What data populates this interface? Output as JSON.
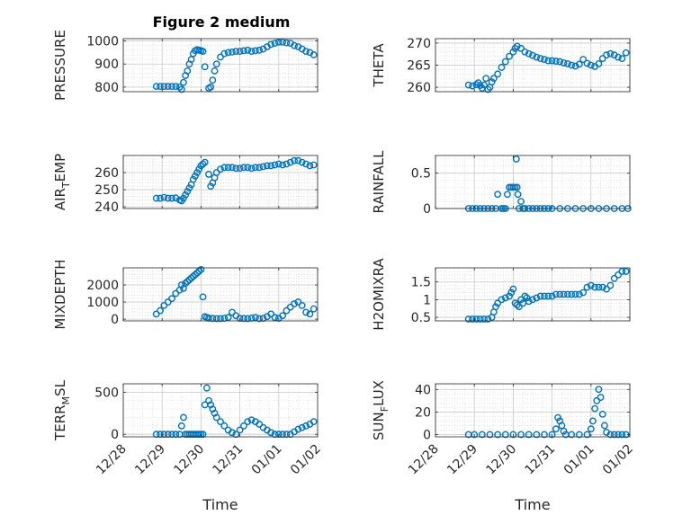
{
  "figure_title": "Figure 2 medium",
  "colors": {
    "marker": "#0072BD",
    "axis": "#262626",
    "grid": "#c8c8c8",
    "minor_grid": "#e0e0e0"
  },
  "chart_data": [
    {
      "type": "scatter",
      "ylabel": "PRESSURE",
      "xlabel": "",
      "title": "Figure 2 medium",
      "xlim": [
        0,
        5
      ],
      "ylim": [
        780,
        1010
      ],
      "yticks": [
        800,
        900,
        1000
      ],
      "ytick_labels": [
        "800",
        "900",
        "1000"
      ],
      "xtick_labels": [
        "12/28",
        "12/29",
        "12/30",
        "12/31",
        "01/01",
        "01/02"
      ],
      "show_xtick_labels": false,
      "grid": true,
      "x": [
        0.85,
        0.95,
        1.05,
        1.15,
        1.25,
        1.35,
        1.45,
        1.5,
        1.55,
        1.6,
        1.65,
        1.7,
        1.75,
        1.8,
        1.85,
        1.9,
        1.95,
        2.0,
        2.05,
        2.1,
        2.2,
        2.25,
        2.3,
        2.35,
        2.4,
        2.5,
        2.6,
        2.7,
        2.8,
        2.9,
        3.0,
        3.1,
        3.2,
        3.3,
        3.4,
        3.5,
        3.6,
        3.7,
        3.8,
        3.9,
        4.0,
        4.1,
        4.2,
        4.3,
        4.4,
        4.5,
        4.6,
        4.7,
        4.8,
        4.9
      ],
      "y": [
        803,
        803,
        803,
        803,
        803,
        803,
        800,
        790,
        820,
        850,
        870,
        900,
        920,
        945,
        958,
        962,
        960,
        958,
        955,
        888,
        795,
        800,
        830,
        870,
        900,
        930,
        945,
        950,
        952,
        955,
        955,
        958,
        960,
        955,
        958,
        960,
        965,
        975,
        985,
        990,
        995,
        995,
        992,
        990,
        980,
        975,
        965,
        955,
        950,
        940
      ]
    },
    {
      "type": "scatter",
      "ylabel": "THETA",
      "xlabel": "",
      "title": "",
      "xlim": [
        0,
        5
      ],
      "ylim": [
        259,
        271
      ],
      "yticks": [
        260,
        265,
        270
      ],
      "ytick_labels": [
        "260",
        "265",
        "270"
      ],
      "xtick_labels": [
        "12/28",
        "12/29",
        "12/30",
        "12/31",
        "01/01",
        "01/02"
      ],
      "show_xtick_labels": false,
      "grid": true,
      "x": [
        0.85,
        0.95,
        1.05,
        1.1,
        1.15,
        1.2,
        1.25,
        1.3,
        1.35,
        1.4,
        1.45,
        1.5,
        1.6,
        1.7,
        1.8,
        1.9,
        2.0,
        2.05,
        2.1,
        2.2,
        2.3,
        2.4,
        2.5,
        2.6,
        2.7,
        2.8,
        2.9,
        3.0,
        3.1,
        3.2,
        3.3,
        3.4,
        3.5,
        3.6,
        3.7,
        3.8,
        3.9,
        4.0,
        4.1,
        4.2,
        4.3,
        4.4,
        4.5,
        4.6,
        4.7,
        4.8,
        4.9
      ],
      "y": [
        260.5,
        260.3,
        260.6,
        261,
        260.4,
        259.8,
        260.5,
        262,
        259.5,
        260,
        261.2,
        262,
        263,
        264.5,
        265.8,
        267,
        268,
        268.8,
        269.3,
        268.8,
        268,
        267.6,
        267.2,
        266.8,
        266.5,
        266.3,
        266,
        266,
        265.9,
        265.8,
        265.5,
        265.3,
        265,
        264.8,
        265.2,
        266.3,
        265.4,
        265,
        264.7,
        265.3,
        266.5,
        267.3,
        267.6,
        267.3,
        266.8,
        266.5,
        267.8
      ]
    },
    {
      "type": "scatter",
      "ylabel": "AIR_TEMP",
      "xlabel": "",
      "title": "",
      "xlim": [
        0,
        5
      ],
      "ylim": [
        239,
        270
      ],
      "yticks": [
        240,
        250,
        260
      ],
      "ytick_labels": [
        "240",
        "250",
        "260"
      ],
      "xtick_labels": [
        "12/28",
        "12/29",
        "12/30",
        "12/31",
        "01/01",
        "01/02"
      ],
      "show_xtick_labels": false,
      "grid": true,
      "x": [
        0.85,
        0.95,
        1.05,
        1.15,
        1.25,
        1.35,
        1.45,
        1.5,
        1.55,
        1.6,
        1.65,
        1.7,
        1.75,
        1.8,
        1.85,
        1.9,
        1.95,
        2.0,
        2.05,
        2.1,
        2.2,
        2.25,
        2.3,
        2.35,
        2.4,
        2.5,
        2.6,
        2.7,
        2.8,
        2.9,
        3.0,
        3.1,
        3.2,
        3.3,
        3.4,
        3.5,
        3.6,
        3.7,
        3.8,
        3.9,
        4.0,
        4.1,
        4.2,
        4.3,
        4.4,
        4.5,
        4.6,
        4.7,
        4.8,
        4.9
      ],
      "y": [
        245,
        245,
        245.5,
        245,
        245,
        245.2,
        244,
        243.5,
        245,
        247,
        249,
        251,
        253,
        256,
        258,
        260,
        262,
        264,
        265,
        266,
        259,
        252,
        254,
        257,
        260,
        262,
        263,
        263,
        263,
        262.5,
        262.5,
        263,
        263,
        262.5,
        263,
        263,
        263.5,
        264,
        264,
        264.5,
        265,
        264.5,
        265,
        266,
        267,
        267,
        266,
        265,
        264,
        264.5
      ]
    },
    {
      "type": "scatter",
      "ylabel": "RAINFALL",
      "xlabel": "",
      "title": "",
      "xlim": [
        0,
        5
      ],
      "ylim": [
        0,
        0.75
      ],
      "yticks": [
        0,
        0.5
      ],
      "ytick_labels": [
        "0",
        "0.5"
      ],
      "xtick_labels": [
        "12/28",
        "12/29",
        "12/30",
        "12/31",
        "01/01",
        "01/02"
      ],
      "show_xtick_labels": false,
      "grid": true,
      "x": [
        0.85,
        0.95,
        1.05,
        1.15,
        1.25,
        1.35,
        1.45,
        1.55,
        1.6,
        1.7,
        1.75,
        1.8,
        1.85,
        1.9,
        1.95,
        2.0,
        2.05,
        2.08,
        2.1,
        2.12,
        2.15,
        2.2,
        2.25,
        2.3,
        2.4,
        2.5,
        2.6,
        2.7,
        2.8,
        2.9,
        3.0,
        3.2,
        3.4,
        3.6,
        3.8,
        4.0,
        4.2,
        4.4,
        4.6,
        4.8,
        4.95
      ],
      "y": [
        0,
        0,
        0,
        0,
        0,
        0,
        0,
        0,
        0.2,
        0,
        0,
        0,
        0.2,
        0.3,
        0.3,
        0.3,
        0.3,
        0.7,
        0.3,
        0.2,
        0,
        0.1,
        0,
        0,
        0,
        0,
        0,
        0,
        0,
        0,
        0,
        0,
        0,
        0,
        0,
        0,
        0,
        0,
        0,
        0,
        0
      ]
    },
    {
      "type": "scatter",
      "ylabel": "MIXDEPTH",
      "xlabel": "",
      "title": "",
      "xlim": [
        0,
        5
      ],
      "ylim": [
        -100,
        3000
      ],
      "yticks": [
        0,
        1000,
        2000
      ],
      "ytick_labels": [
        "0",
        "1000",
        "2000"
      ],
      "xtick_labels": [
        "12/28",
        "12/29",
        "12/30",
        "12/31",
        "01/01",
        "01/02"
      ],
      "show_xtick_labels": false,
      "grid": true,
      "x": [
        0.85,
        0.95,
        1.05,
        1.15,
        1.25,
        1.35,
        1.45,
        1.5,
        1.55,
        1.6,
        1.65,
        1.7,
        1.75,
        1.8,
        1.85,
        1.9,
        1.95,
        2.0,
        2.05,
        2.1,
        2.15,
        2.2,
        2.3,
        2.4,
        2.5,
        2.6,
        2.7,
        2.8,
        2.9,
        3.0,
        3.1,
        3.2,
        3.3,
        3.4,
        3.5,
        3.6,
        3.7,
        3.8,
        3.9,
        4.0,
        4.1,
        4.2,
        4.3,
        4.4,
        4.5,
        4.6,
        4.7,
        4.8,
        4.9
      ],
      "y": [
        300,
        500,
        800,
        1000,
        1200,
        1500,
        1700,
        2000,
        1800,
        2100,
        2200,
        2300,
        2400,
        2500,
        2600,
        2700,
        2800,
        2900,
        1300,
        150,
        100,
        60,
        40,
        30,
        30,
        50,
        100,
        400,
        200,
        50,
        40,
        30,
        60,
        100,
        30,
        50,
        150,
        300,
        100,
        50,
        200,
        500,
        700,
        900,
        1000,
        800,
        400,
        300,
        600
      ]
    },
    {
      "type": "scatter",
      "ylabel": "H2OMIXRA",
      "xlabel": "",
      "title": "",
      "xlim": [
        0,
        5
      ],
      "ylim": [
        0.4,
        1.9
      ],
      "yticks": [
        0.5,
        1,
        1.5
      ],
      "ytick_labels": [
        "0.5",
        "1",
        "1.5"
      ],
      "xtick_labels": [
        "12/28",
        "12/29",
        "12/30",
        "12/31",
        "01/01",
        "01/02"
      ],
      "show_xtick_labels": false,
      "grid": true,
      "x": [
        0.85,
        0.95,
        1.05,
        1.15,
        1.25,
        1.35,
        1.45,
        1.5,
        1.55,
        1.6,
        1.7,
        1.8,
        1.9,
        1.95,
        2.0,
        2.05,
        2.1,
        2.15,
        2.2,
        2.25,
        2.3,
        2.35,
        2.4,
        2.5,
        2.6,
        2.7,
        2.8,
        2.9,
        3.0,
        3.1,
        3.2,
        3.3,
        3.4,
        3.5,
        3.6,
        3.7,
        3.8,
        3.9,
        4.0,
        4.1,
        4.2,
        4.3,
        4.4,
        4.5,
        4.6,
        4.7,
        4.8,
        4.9
      ],
      "y": [
        0.45,
        0.45,
        0.45,
        0.45,
        0.45,
        0.45,
        0.5,
        0.65,
        0.8,
        0.9,
        1.0,
        1.05,
        1.1,
        1.2,
        1.3,
        0.9,
        0.85,
        0.8,
        1.0,
        0.9,
        1.1,
        1.05,
        0.95,
        1.0,
        1.05,
        1.1,
        1.1,
        1.1,
        1.1,
        1.15,
        1.15,
        1.15,
        1.15,
        1.15,
        1.15,
        1.15,
        1.2,
        1.35,
        1.4,
        1.35,
        1.35,
        1.35,
        1.3,
        1.4,
        1.6,
        1.7,
        1.8,
        1.8
      ]
    },
    {
      "type": "scatter",
      "ylabel": "TERR_MSL",
      "xlabel": "Time",
      "title": "",
      "xlim": [
        0,
        5
      ],
      "ylim": [
        -30,
        600
      ],
      "yticks": [
        0,
        500
      ],
      "ytick_labels": [
        "0",
        "500"
      ],
      "xtick_labels": [
        "12/28",
        "12/29",
        "12/30",
        "12/31",
        "01/01",
        "01/02"
      ],
      "show_xtick_labels": true,
      "grid": true,
      "x": [
        0.85,
        0.95,
        1.05,
        1.15,
        1.25,
        1.35,
        1.45,
        1.5,
        1.55,
        1.6,
        1.65,
        1.7,
        1.75,
        1.8,
        1.85,
        1.9,
        1.95,
        2.0,
        2.05,
        2.1,
        2.15,
        2.2,
        2.25,
        2.3,
        2.35,
        2.4,
        2.5,
        2.6,
        2.7,
        2.8,
        2.9,
        3.0,
        3.1,
        3.2,
        3.3,
        3.4,
        3.5,
        3.6,
        3.7,
        3.8,
        3.9,
        4.0,
        4.1,
        4.2,
        4.3,
        4.4,
        4.5,
        4.6,
        4.7,
        4.8,
        4.9
      ],
      "y": [
        0,
        0,
        0,
        0,
        0,
        0,
        0,
        100,
        200,
        0,
        0,
        0,
        0,
        0,
        0,
        0,
        0,
        0,
        0,
        350,
        550,
        400,
        350,
        300,
        250,
        200,
        150,
        100,
        50,
        20,
        0,
        50,
        100,
        150,
        170,
        150,
        120,
        80,
        50,
        20,
        0,
        0,
        0,
        0,
        0,
        30,
        60,
        80,
        100,
        120,
        150
      ]
    },
    {
      "type": "scatter",
      "ylabel": "SUN_FLUX",
      "xlabel": "Time",
      "title": "",
      "xlim": [
        0,
        5
      ],
      "ylim": [
        -2,
        45
      ],
      "yticks": [
        0,
        20,
        40
      ],
      "ytick_labels": [
        "0",
        "20",
        "40"
      ],
      "xtick_labels": [
        "12/28",
        "12/29",
        "12/30",
        "12/31",
        "01/01",
        "01/02"
      ],
      "show_xtick_labels": true,
      "grid": true,
      "x": [
        0.85,
        1.0,
        1.2,
        1.4,
        1.6,
        1.8,
        2.0,
        2.2,
        2.4,
        2.6,
        2.8,
        3.0,
        3.1,
        3.15,
        3.2,
        3.25,
        3.3,
        3.35,
        3.5,
        3.7,
        3.9,
        4.0,
        4.05,
        4.1,
        4.15,
        4.2,
        4.25,
        4.3,
        4.35,
        4.4,
        4.5,
        4.6,
        4.7,
        4.8,
        4.9
      ],
      "y": [
        0,
        0,
        0,
        0,
        0,
        0,
        0,
        0,
        0,
        0,
        0,
        0,
        5,
        15,
        12,
        8,
        3,
        0,
        0,
        0,
        0,
        5,
        12,
        23,
        30,
        40,
        33,
        18,
        8,
        2,
        0,
        0,
        0,
        0,
        0
      ]
    }
  ]
}
